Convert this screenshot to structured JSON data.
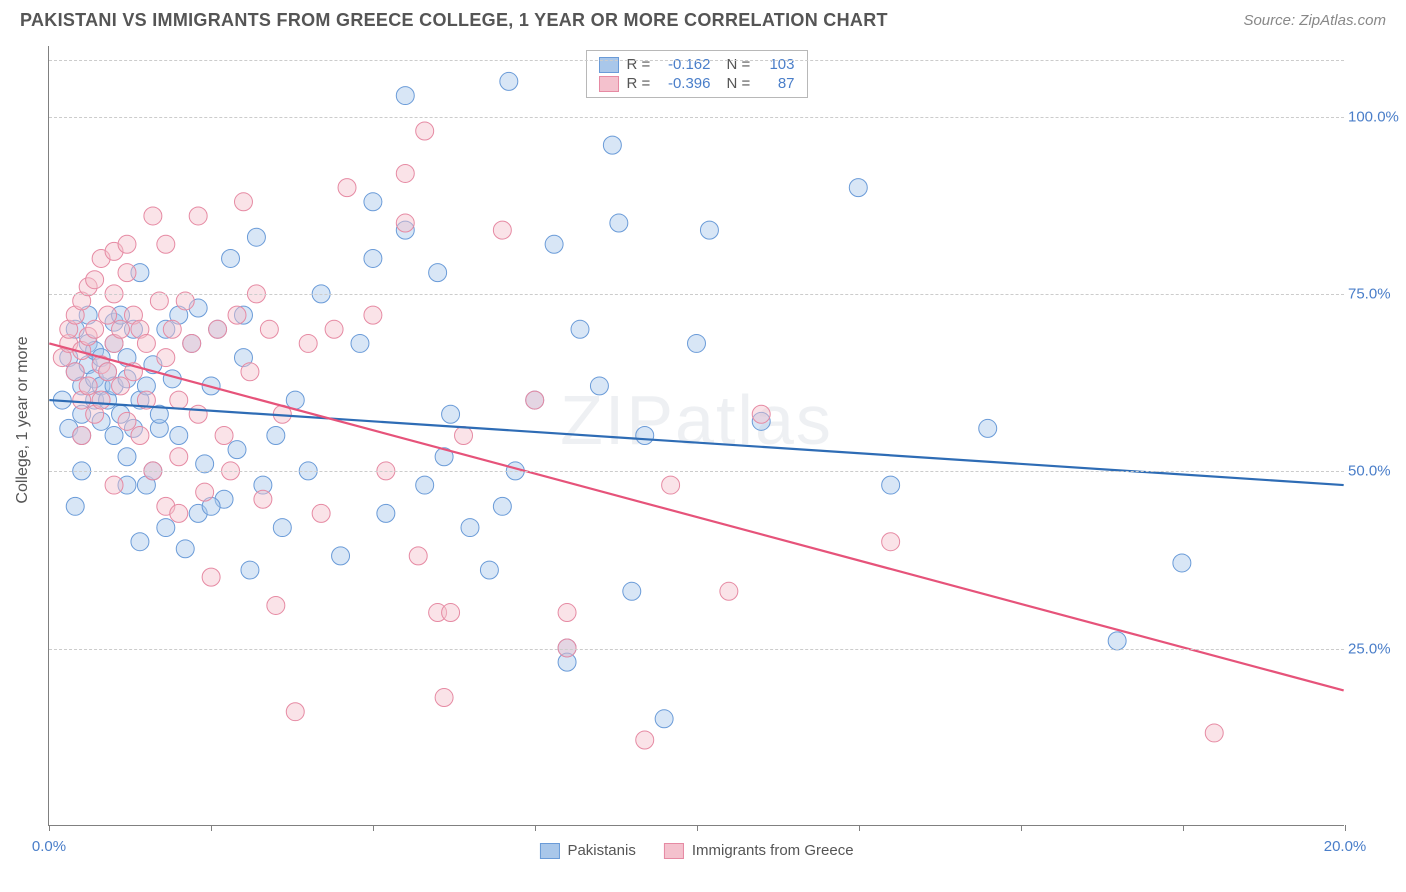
{
  "header": {
    "title": "PAKISTANI VS IMMIGRANTS FROM GREECE COLLEGE, 1 YEAR OR MORE CORRELATION CHART",
    "source": "Source: ZipAtlas.com"
  },
  "chart": {
    "type": "scatter",
    "yaxis_title": "College, 1 year or more",
    "watermark": "ZIPatlas",
    "background_color": "#ffffff",
    "grid_color": "#cccccc",
    "axis_color": "#808080",
    "tick_label_color": "#4a7ec9",
    "title_color": "#555555",
    "xlim": [
      0,
      20
    ],
    "ylim": [
      0,
      110
    ],
    "xticks": [
      0,
      2.5,
      5,
      7.5,
      10,
      12.5,
      15,
      17.5,
      20
    ],
    "xtick_labels": {
      "0": "0.0%",
      "20": "20.0%"
    },
    "yticks": [
      25,
      50,
      75,
      100
    ],
    "ytick_labels": {
      "25": "25.0%",
      "50": "50.0%",
      "75": "75.0%",
      "100": "100.0%"
    },
    "marker_radius": 9,
    "marker_opacity": 0.45,
    "line_width": 2.2,
    "series": [
      {
        "name": "Pakistanis",
        "color_fill": "#a9c7ea",
        "color_stroke": "#6a9bd8",
        "color_line": "#2e6cb5",
        "r": "-0.162",
        "n": "103",
        "regression": {
          "x1": 0,
          "y1": 60,
          "x2": 20,
          "y2": 48
        },
        "points": [
          [
            0.2,
            60
          ],
          [
            0.3,
            66
          ],
          [
            0.3,
            56
          ],
          [
            0.4,
            64
          ],
          [
            0.4,
            70
          ],
          [
            0.5,
            58
          ],
          [
            0.5,
            62
          ],
          [
            0.5,
            55
          ],
          [
            0.5,
            50
          ],
          [
            0.6,
            65
          ],
          [
            0.6,
            68
          ],
          [
            0.6,
            72
          ],
          [
            0.7,
            60
          ],
          [
            0.7,
            63
          ],
          [
            0.7,
            67
          ],
          [
            0.8,
            57
          ],
          [
            0.8,
            62
          ],
          [
            0.8,
            66
          ],
          [
            0.9,
            64
          ],
          [
            0.9,
            60
          ],
          [
            1.0,
            62
          ],
          [
            1.0,
            68
          ],
          [
            1.0,
            71
          ],
          [
            1.0,
            55
          ],
          [
            1.1,
            58
          ],
          [
            1.1,
            72
          ],
          [
            1.2,
            63
          ],
          [
            1.2,
            52
          ],
          [
            1.2,
            66
          ],
          [
            1.3,
            56
          ],
          [
            1.3,
            70
          ],
          [
            1.4,
            78
          ],
          [
            1.4,
            60
          ],
          [
            1.4,
            40
          ],
          [
            1.5,
            48
          ],
          [
            1.5,
            62
          ],
          [
            1.6,
            50
          ],
          [
            1.6,
            65
          ],
          [
            1.7,
            56
          ],
          [
            1.7,
            58
          ],
          [
            1.8,
            70
          ],
          [
            1.8,
            42
          ],
          [
            1.9,
            63
          ],
          [
            2.0,
            72
          ],
          [
            2.0,
            55
          ],
          [
            2.1,
            39
          ],
          [
            2.2,
            68
          ],
          [
            2.3,
            73
          ],
          [
            2.3,
            44
          ],
          [
            2.4,
            51
          ],
          [
            2.5,
            62
          ],
          [
            2.6,
            70
          ],
          [
            2.7,
            46
          ],
          [
            2.8,
            80
          ],
          [
            2.9,
            53
          ],
          [
            3.0,
            66
          ],
          [
            3.1,
            36
          ],
          [
            3.2,
            83
          ],
          [
            3.3,
            48
          ],
          [
            3.5,
            55
          ],
          [
            3.6,
            42
          ],
          [
            3.8,
            60
          ],
          [
            4.0,
            50
          ],
          [
            4.2,
            75
          ],
          [
            4.5,
            38
          ],
          [
            4.8,
            68
          ],
          [
            5.0,
            80
          ],
          [
            5.0,
            88
          ],
          [
            5.2,
            44
          ],
          [
            5.5,
            84
          ],
          [
            5.5,
            103
          ],
          [
            5.8,
            48
          ],
          [
            6.0,
            78
          ],
          [
            6.1,
            52
          ],
          [
            6.2,
            58
          ],
          [
            6.5,
            42
          ],
          [
            6.8,
            36
          ],
          [
            7.0,
            45
          ],
          [
            7.1,
            105
          ],
          [
            7.2,
            50
          ],
          [
            7.5,
            60
          ],
          [
            7.8,
            82
          ],
          [
            8.0,
            25
          ],
          [
            8.0,
            23
          ],
          [
            8.2,
            70
          ],
          [
            8.5,
            62
          ],
          [
            8.7,
            96
          ],
          [
            8.8,
            85
          ],
          [
            9.0,
            33
          ],
          [
            9.2,
            55
          ],
          [
            9.5,
            15
          ],
          [
            10.0,
            68
          ],
          [
            10.2,
            84
          ],
          [
            11.0,
            57
          ],
          [
            12.5,
            90
          ],
          [
            13.0,
            48
          ],
          [
            14.5,
            56
          ],
          [
            16.5,
            26
          ],
          [
            17.5,
            37
          ],
          [
            0.4,
            45
          ],
          [
            1.2,
            48
          ],
          [
            2.5,
            45
          ],
          [
            3.0,
            72
          ]
        ]
      },
      {
        "name": "Immigrants from Greece",
        "color_fill": "#f4c1cd",
        "color_stroke": "#e68aa3",
        "color_line": "#e6537a",
        "r": "-0.396",
        "n": "87",
        "regression": {
          "x1": 0,
          "y1": 68,
          "x2": 20,
          "y2": 19
        },
        "points": [
          [
            0.2,
            66
          ],
          [
            0.3,
            68
          ],
          [
            0.3,
            70
          ],
          [
            0.4,
            72
          ],
          [
            0.4,
            64
          ],
          [
            0.5,
            60
          ],
          [
            0.5,
            67
          ],
          [
            0.5,
            74
          ],
          [
            0.6,
            69
          ],
          [
            0.6,
            76
          ],
          [
            0.6,
            62
          ],
          [
            0.7,
            77
          ],
          [
            0.7,
            70
          ],
          [
            0.7,
            58
          ],
          [
            0.8,
            80
          ],
          [
            0.8,
            65
          ],
          [
            0.8,
            60
          ],
          [
            0.9,
            72
          ],
          [
            0.9,
            64
          ],
          [
            1.0,
            68
          ],
          [
            1.0,
            75
          ],
          [
            1.0,
            48
          ],
          [
            1.0,
            81
          ],
          [
            1.1,
            70
          ],
          [
            1.1,
            62
          ],
          [
            1.2,
            78
          ],
          [
            1.2,
            57
          ],
          [
            1.3,
            64
          ],
          [
            1.3,
            72
          ],
          [
            1.4,
            55
          ],
          [
            1.4,
            70
          ],
          [
            1.5,
            60
          ],
          [
            1.5,
            68
          ],
          [
            1.6,
            86
          ],
          [
            1.6,
            50
          ],
          [
            1.7,
            74
          ],
          [
            1.8,
            66
          ],
          [
            1.8,
            45
          ],
          [
            1.9,
            70
          ],
          [
            2.0,
            52
          ],
          [
            2.0,
            60
          ],
          [
            2.1,
            74
          ],
          [
            2.2,
            68
          ],
          [
            2.3,
            58
          ],
          [
            2.3,
            86
          ],
          [
            2.4,
            47
          ],
          [
            2.5,
            35
          ],
          [
            2.6,
            70
          ],
          [
            2.7,
            55
          ],
          [
            2.8,
            50
          ],
          [
            2.9,
            72
          ],
          [
            3.0,
            88
          ],
          [
            3.1,
            64
          ],
          [
            3.2,
            75
          ],
          [
            3.3,
            46
          ],
          [
            3.4,
            70
          ],
          [
            3.5,
            31
          ],
          [
            3.6,
            58
          ],
          [
            3.8,
            16
          ],
          [
            4.0,
            68
          ],
          [
            4.2,
            44
          ],
          [
            4.4,
            70
          ],
          [
            4.6,
            90
          ],
          [
            5.0,
            72
          ],
          [
            5.2,
            50
          ],
          [
            5.5,
            85
          ],
          [
            5.5,
            92
          ],
          [
            5.7,
            38
          ],
          [
            5.8,
            98
          ],
          [
            6.0,
            30
          ],
          [
            6.1,
            18
          ],
          [
            6.2,
            30
          ],
          [
            6.4,
            55
          ],
          [
            7.0,
            84
          ],
          [
            7.5,
            60
          ],
          [
            8.0,
            30
          ],
          [
            8.0,
            25
          ],
          [
            9.2,
            12
          ],
          [
            9.6,
            48
          ],
          [
            10.5,
            33
          ],
          [
            11.0,
            58
          ],
          [
            13.0,
            40
          ],
          [
            18.0,
            13
          ],
          [
            1.2,
            82
          ],
          [
            1.8,
            82
          ],
          [
            0.5,
            55
          ],
          [
            2.0,
            44
          ]
        ]
      }
    ],
    "legend_top": {
      "r_label": "R =",
      "n_label": "N ="
    },
    "legend_bottom": [
      "Pakistanis",
      "Immigrants from Greece"
    ]
  }
}
